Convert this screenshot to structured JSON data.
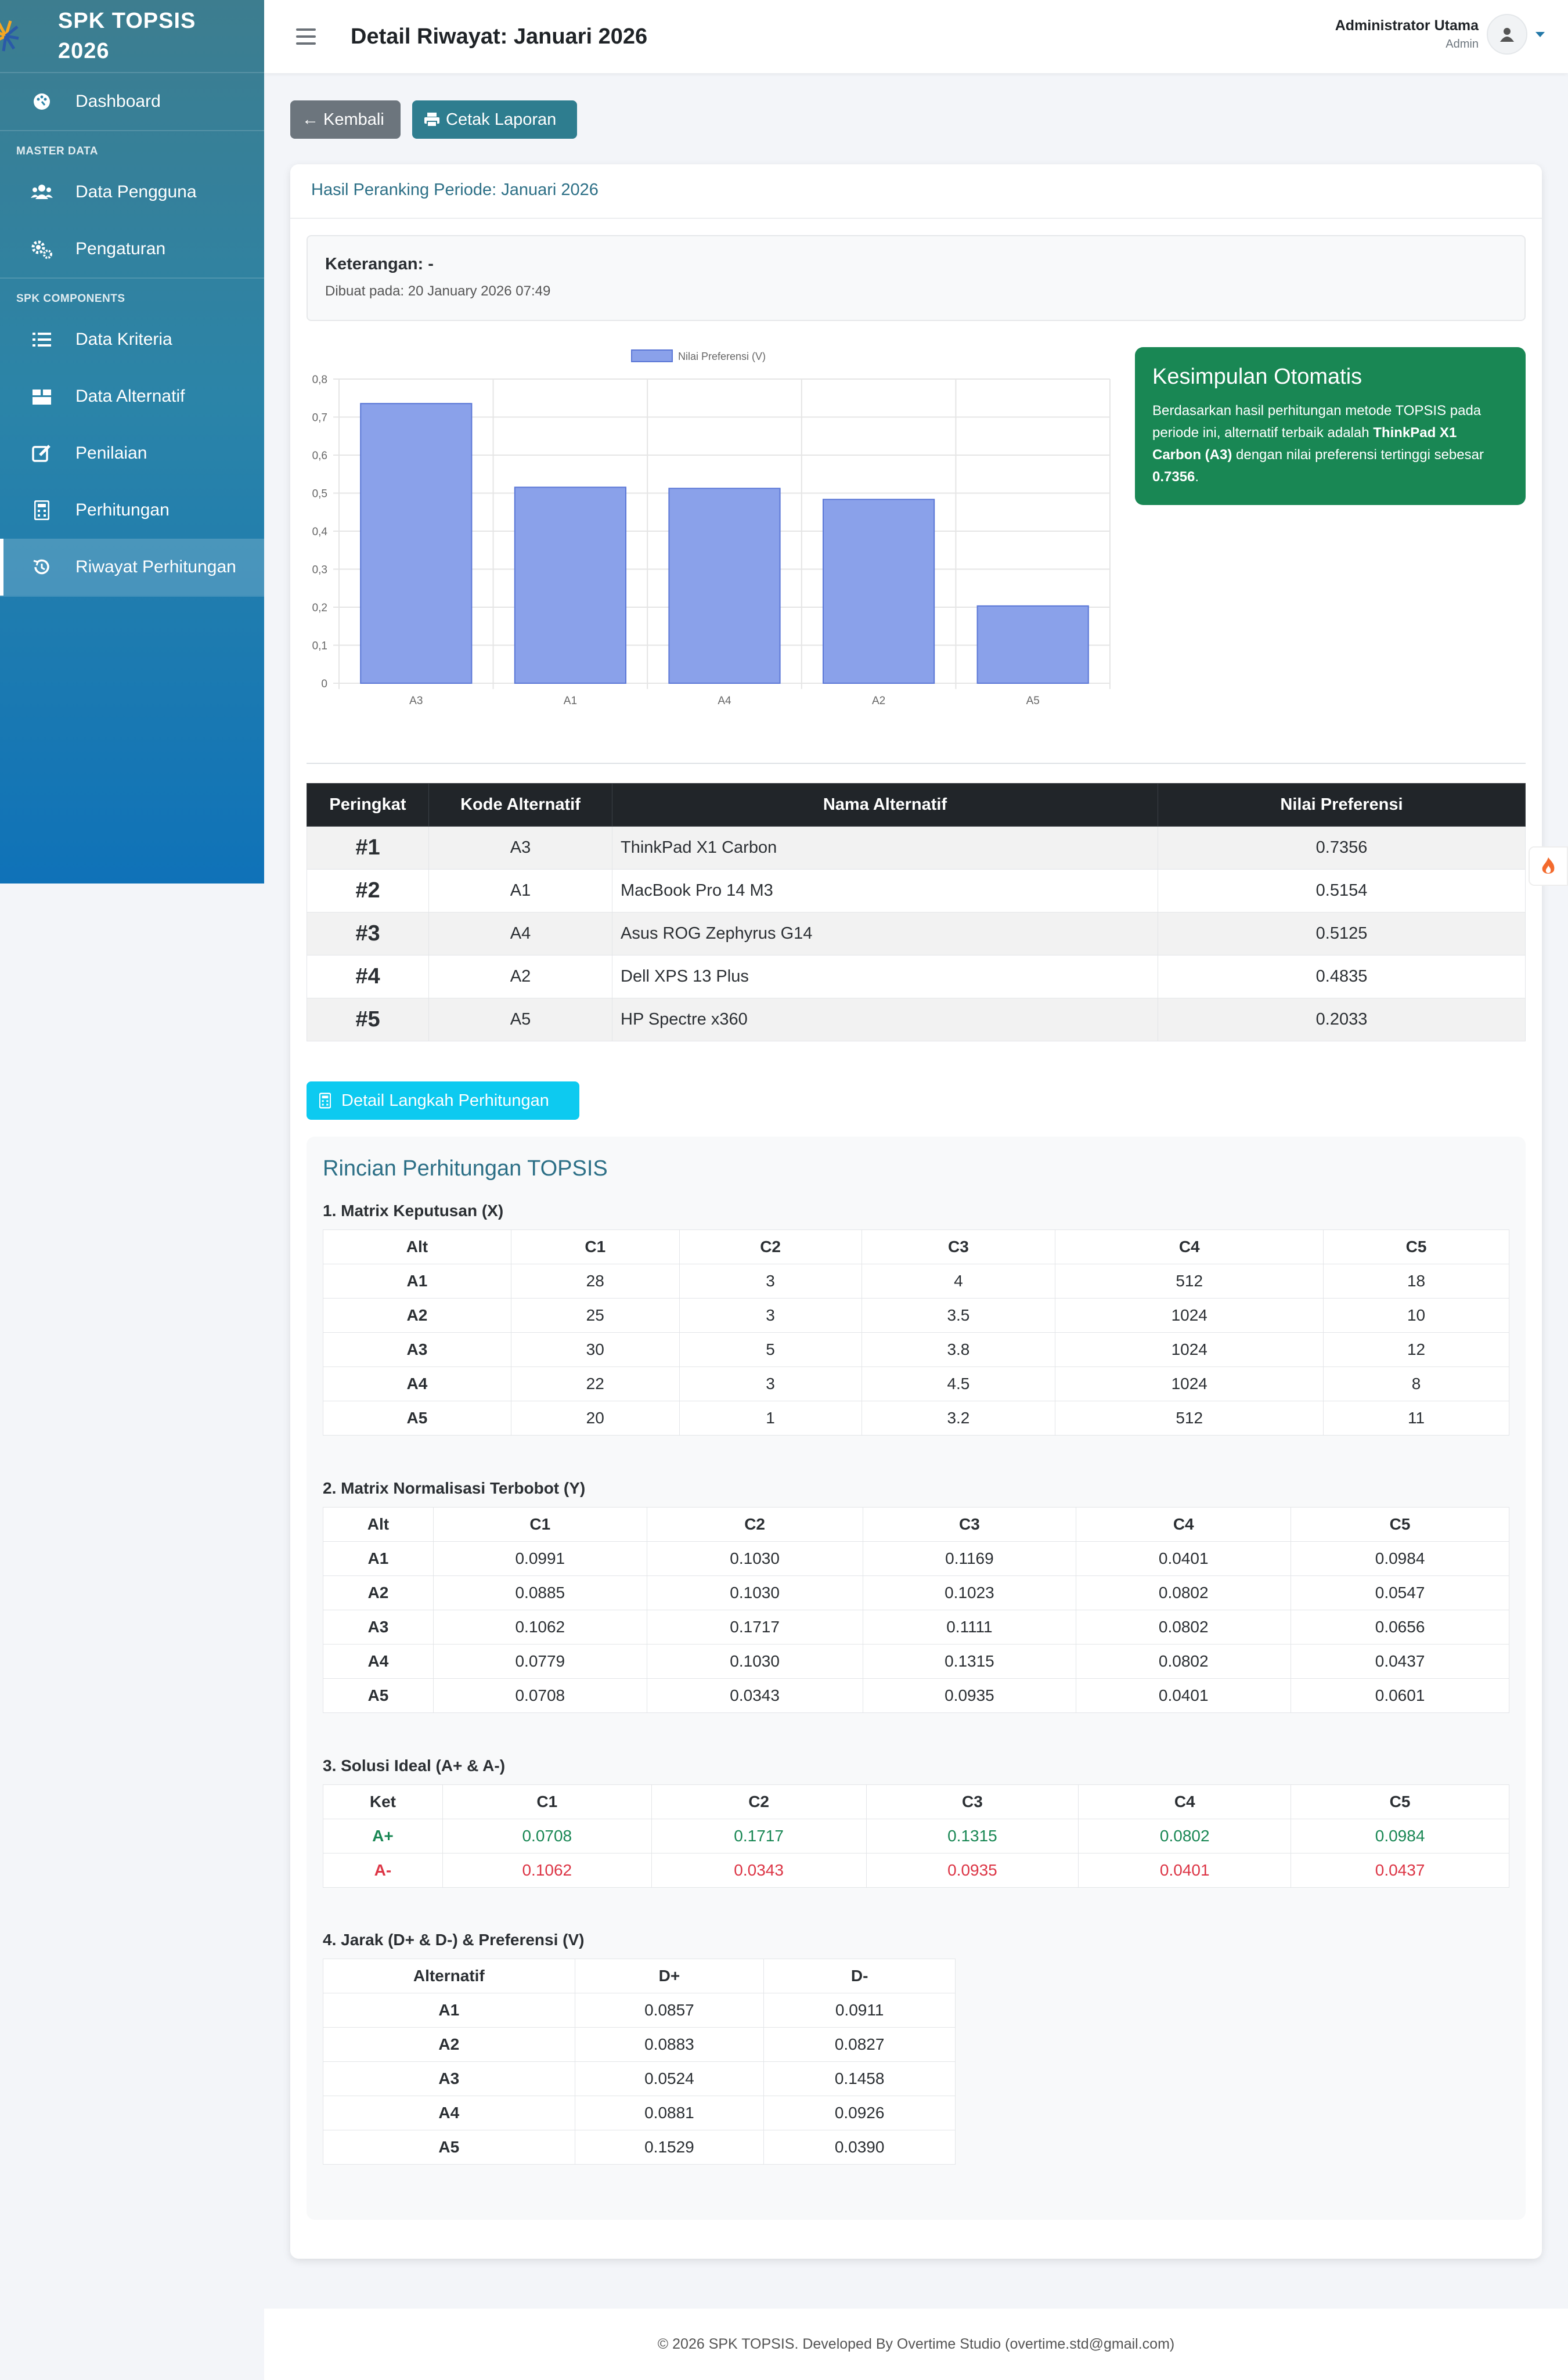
{
  "sidebar": {
    "brand": "SPK TOPSIS 2026",
    "items": [
      {
        "label": "Dashboard",
        "icon": "palette-icon"
      },
      {
        "heading": "MASTER DATA"
      },
      {
        "label": "Data Pengguna",
        "icon": "users-icon"
      },
      {
        "label": "Pengaturan",
        "icon": "gears-icon"
      },
      {
        "heading": "SPK COMPONENTS"
      },
      {
        "label": "Data Kriteria",
        "icon": "list-icon"
      },
      {
        "label": "Data Alternatif",
        "icon": "boxes-icon"
      },
      {
        "label": "Penilaian",
        "icon": "edit-icon"
      },
      {
        "label": "Perhitungan",
        "icon": "calculator-icon"
      },
      {
        "label": "Riwayat Perhitungan",
        "icon": "history-icon",
        "active": true
      }
    ]
  },
  "topbar": {
    "title": "Detail Riwayat: Januari 2026",
    "user_name": "Administrator Utama",
    "user_role": "Admin"
  },
  "actions": {
    "back": "Kembali",
    "print": "Cetak Laporan"
  },
  "card": {
    "header": "Hasil Peranking Periode: Januari 2026",
    "keterangan_label": "Keterangan:",
    "keterangan_value": "-",
    "created": "Dibuat pada: 20 January 2026 07:49"
  },
  "chart_data": {
    "type": "bar",
    "categories": [
      "A3",
      "A1",
      "A4",
      "A2",
      "A5"
    ],
    "series": [
      {
        "name": "Nilai Preferensi (V)",
        "values": [
          0.7356,
          0.5154,
          0.5125,
          0.4835,
          0.2033
        ]
      }
    ],
    "ylim": [
      0,
      0.8
    ],
    "yticks": [
      "0",
      "0,1",
      "0,2",
      "0,3",
      "0,4",
      "0,5",
      "0,6",
      "0,7",
      "0,8"
    ],
    "bar_color": "#8aa1ea",
    "grid": true,
    "legend": "top-center"
  },
  "conclusion": {
    "title": "Kesimpulan Otomatis",
    "text1": "Berdasarkan hasil perhitungan metode TOPSIS pada periode ini, alternatif terbaik adalah ",
    "best": "ThinkPad X1 Carbon (A3)",
    "text2": " dengan nilai preferensi tertinggi sebesar ",
    "value": "0.7356",
    "text3": "."
  },
  "ranking": {
    "headers": [
      "Peringkat",
      "Kode Alternatif",
      "Nama Alternatif",
      "Nilai Preferensi"
    ],
    "rows": [
      [
        "#1",
        "A3",
        "ThinkPad X1 Carbon",
        "0.7356"
      ],
      [
        "#2",
        "A1",
        "MacBook Pro 14 M3",
        "0.5154"
      ],
      [
        "#3",
        "A4",
        "Asus ROG Zephyrus G14",
        "0.5125"
      ],
      [
        "#4",
        "A2",
        "Dell XPS 13 Plus",
        "0.4835"
      ],
      [
        "#5",
        "A5",
        "HP Spectre x360",
        "0.2033"
      ]
    ]
  },
  "detail_button": "Detail Langkah Perhitungan",
  "detail": {
    "title": "Rincian Perhitungan TOPSIS",
    "matrix_x": {
      "title": "1. Matrix Keputusan (X)",
      "headers": [
        "Alt",
        "C1",
        "C2",
        "C3",
        "C4",
        "C5"
      ],
      "rows": [
        [
          "A1",
          "28",
          "3",
          "4",
          "512",
          "18"
        ],
        [
          "A2",
          "25",
          "3",
          "3.5",
          "1024",
          "10"
        ],
        [
          "A3",
          "30",
          "5",
          "3.8",
          "1024",
          "12"
        ],
        [
          "A4",
          "22",
          "3",
          "4.5",
          "1024",
          "8"
        ],
        [
          "A5",
          "20",
          "1",
          "3.2",
          "512",
          "11"
        ]
      ]
    },
    "matrix_y": {
      "title": "2. Matrix Normalisasi Terbobot (Y)",
      "headers": [
        "Alt",
        "C1",
        "C2",
        "C3",
        "C4",
        "C5"
      ],
      "rows": [
        [
          "A1",
          "0.0991",
          "0.1030",
          "0.1169",
          "0.0401",
          "0.0984"
        ],
        [
          "A2",
          "0.0885",
          "0.1030",
          "0.1023",
          "0.0802",
          "0.0547"
        ],
        [
          "A3",
          "0.1062",
          "0.1717",
          "0.1111",
          "0.0802",
          "0.0656"
        ],
        [
          "A4",
          "0.0779",
          "0.1030",
          "0.1315",
          "0.0802",
          "0.0437"
        ],
        [
          "A5",
          "0.0708",
          "0.0343",
          "0.0935",
          "0.0401",
          "0.0601"
        ]
      ]
    },
    "ideal": {
      "title": "3. Solusi Ideal (A+ & A-)",
      "headers": [
        "Ket",
        "C1",
        "C2",
        "C3",
        "C4",
        "C5"
      ],
      "rows": [
        [
          "A+",
          "0.0708",
          "0.1717",
          "0.1315",
          "0.0802",
          "0.0984"
        ],
        [
          "A-",
          "0.1062",
          "0.0343",
          "0.0935",
          "0.0401",
          "0.0437"
        ]
      ]
    },
    "distance": {
      "title": "4. Jarak (D+ & D-) & Preferensi (V)",
      "headers": [
        "Alternatif",
        "D+",
        "D-"
      ],
      "rows": [
        [
          "A1",
          "0.0857",
          "0.0911"
        ],
        [
          "A2",
          "0.0883",
          "0.0827"
        ],
        [
          "A3",
          "0.0524",
          "0.1458"
        ],
        [
          "A4",
          "0.0881",
          "0.0926"
        ],
        [
          "A5",
          "0.1529",
          "0.0390"
        ]
      ]
    }
  },
  "footer": "© 2026 SPK TOPSIS. Developed By Overtime Studio (overtime.std@gmail.com)",
  "colors": {
    "sidebar_top": "#3d7d8f",
    "sidebar_bottom": "#0f72b8",
    "success": "#198754",
    "danger": "#dc3545",
    "info": "#0dcaf0"
  }
}
